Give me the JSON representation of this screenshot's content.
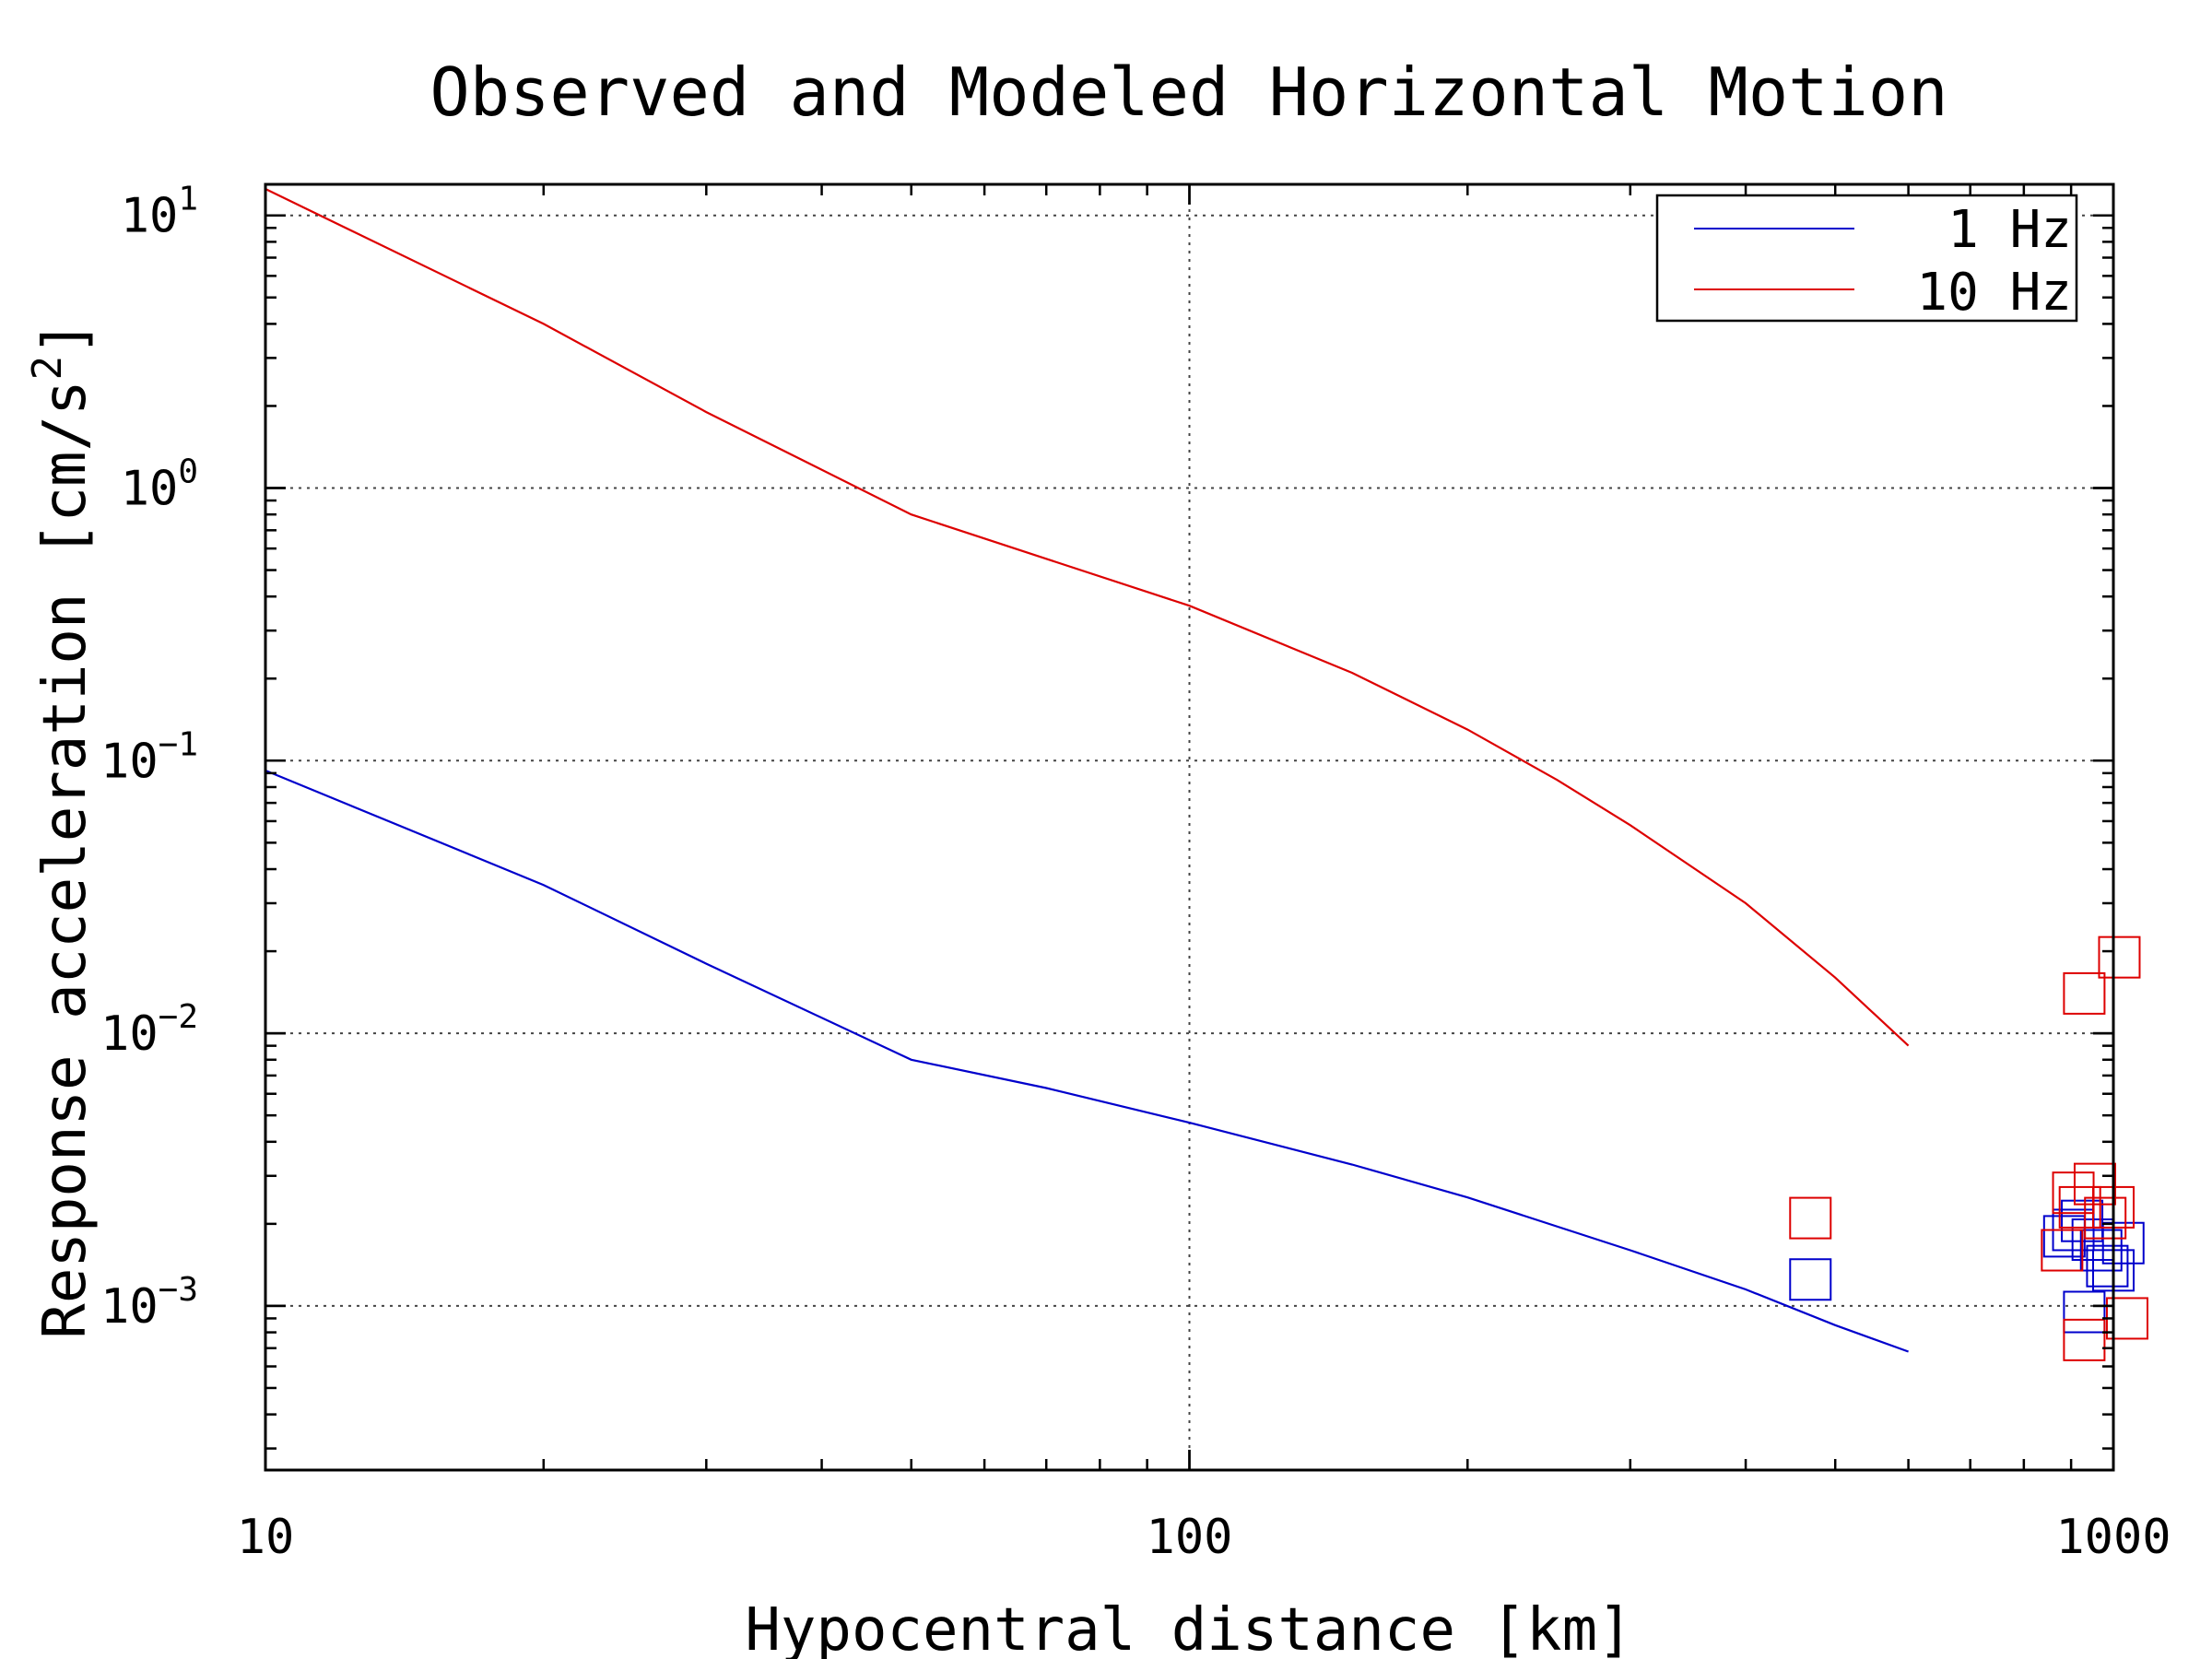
{
  "chart_data": {
    "type": "line",
    "title": "Observed and Modeled Horizontal Motion",
    "xlabel": "Hypocentral distance [km]",
    "ylabel": "Response acceleration [cm/s",
    "ylabel_sup": "2",
    "ylabel_suffix": "]",
    "x_scale": "log",
    "y_scale": "log",
    "xlim": [
      10,
      1000
    ],
    "ylim": [
      0.00025,
      13
    ],
    "x_ticks": [
      {
        "value": 10,
        "label": "10"
      },
      {
        "value": 100,
        "label": "100"
      },
      {
        "value": 1000,
        "label": "1000"
      }
    ],
    "y_ticks": [
      {
        "value": 10,
        "base": "10",
        "exp": "1"
      },
      {
        "value": 1,
        "base": "10",
        "exp": "0"
      },
      {
        "value": 0.1,
        "base": "10",
        "exp": "−1"
      },
      {
        "value": 0.01,
        "base": "10",
        "exp": "−2"
      },
      {
        "value": 0.001,
        "base": "10",
        "exp": "−3"
      }
    ],
    "grid": true,
    "legend_position": "top-right",
    "series": [
      {
        "name": "1 Hz",
        "color": "#0000cc",
        "x": [
          10,
          20,
          30,
          50,
          70,
          100,
          150,
          200,
          300,
          400,
          500,
          600
        ],
        "y": [
          0.092,
          0.035,
          0.018,
          0.008,
          0.0063,
          0.0047,
          0.0033,
          0.0025,
          0.0016,
          0.00115,
          0.00085,
          0.00068
        ]
      },
      {
        "name": "10 Hz",
        "color": "#dd0000",
        "x": [
          10,
          20,
          30,
          50,
          70,
          100,
          150,
          200,
          250,
          300,
          400,
          500,
          600
        ],
        "y": [
          12.5,
          4.0,
          1.9,
          0.8,
          0.55,
          0.37,
          0.21,
          0.13,
          0.085,
          0.058,
          0.03,
          0.016,
          0.009
        ]
      }
    ],
    "observed": [
      {
        "series": "1 Hz",
        "color": "#0000cc",
        "points": [
          {
            "x": 470,
            "y": 0.00125
          },
          {
            "x": 885,
            "y": 0.0018
          },
          {
            "x": 905,
            "y": 0.0019
          },
          {
            "x": 925,
            "y": 0.00205
          },
          {
            "x": 950,
            "y": 0.00175
          },
          {
            "x": 970,
            "y": 0.0016
          },
          {
            "x": 985,
            "y": 0.0014
          },
          {
            "x": 1000,
            "y": 0.00135
          },
          {
            "x": 1025,
            "y": 0.0017
          },
          {
            "x": 930,
            "y": 0.00095
          }
        ]
      },
      {
        "series": "10 Hz",
        "color": "#dd0000",
        "points": [
          {
            "x": 470,
            "y": 0.0021
          },
          {
            "x": 880,
            "y": 0.0016
          },
          {
            "x": 905,
            "y": 0.0026
          },
          {
            "x": 920,
            "y": 0.0023
          },
          {
            "x": 955,
            "y": 0.0028
          },
          {
            "x": 980,
            "y": 0.0021
          },
          {
            "x": 1000,
            "y": 0.0023
          },
          {
            "x": 930,
            "y": 0.00075
          },
          {
            "x": 930,
            "y": 0.014
          },
          {
            "x": 1015,
            "y": 0.019
          },
          {
            "x": 1035,
            "y": 0.0009
          }
        ]
      }
    ]
  }
}
